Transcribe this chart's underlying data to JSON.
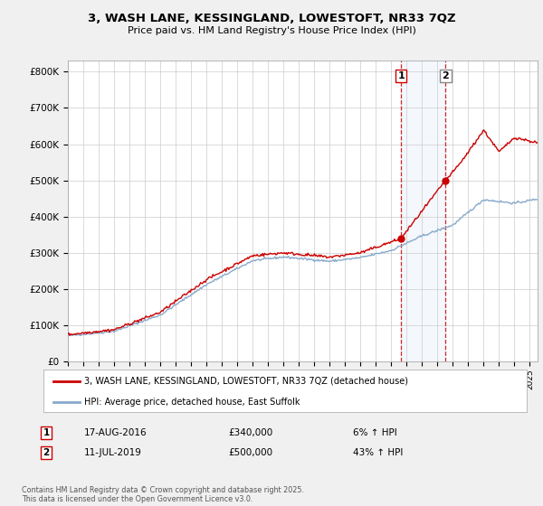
{
  "title": "3, WASH LANE, KESSINGLAND, LOWESTOFT, NR33 7QZ",
  "subtitle": "Price paid vs. HM Land Registry's House Price Index (HPI)",
  "bg_color": "#f0f0f0",
  "plot_bg_color": "#ffffff",
  "grid_color": "#cccccc",
  "sale1_date": 2016.63,
  "sale1_label": "1",
  "sale1_price": 340000,
  "sale1_text": "17-AUG-2016",
  "sale1_hpi": "6% ↑ HPI",
  "sale2_date": 2019.53,
  "sale2_label": "2",
  "sale2_price": 500000,
  "sale2_text": "11-JUL-2019",
  "sale2_hpi": "43% ↑ HPI",
  "xmin": 1995,
  "xmax": 2025.5,
  "ymin": 0,
  "ymax": 830000,
  "yticks": [
    0,
    100000,
    200000,
    300000,
    400000,
    500000,
    600000,
    700000,
    800000
  ],
  "legend_line1": "3, WASH LANE, KESSINGLAND, LOWESTOFT, NR33 7QZ (detached house)",
  "legend_line2": "HPI: Average price, detached house, East Suffolk",
  "footer": "Contains HM Land Registry data © Crown copyright and database right 2025.\nThis data is licensed under the Open Government Licence v3.0.",
  "line_color_house": "#cc0000",
  "line_color_hpi": "#88aacc",
  "marker_color_house": "#cc0000"
}
